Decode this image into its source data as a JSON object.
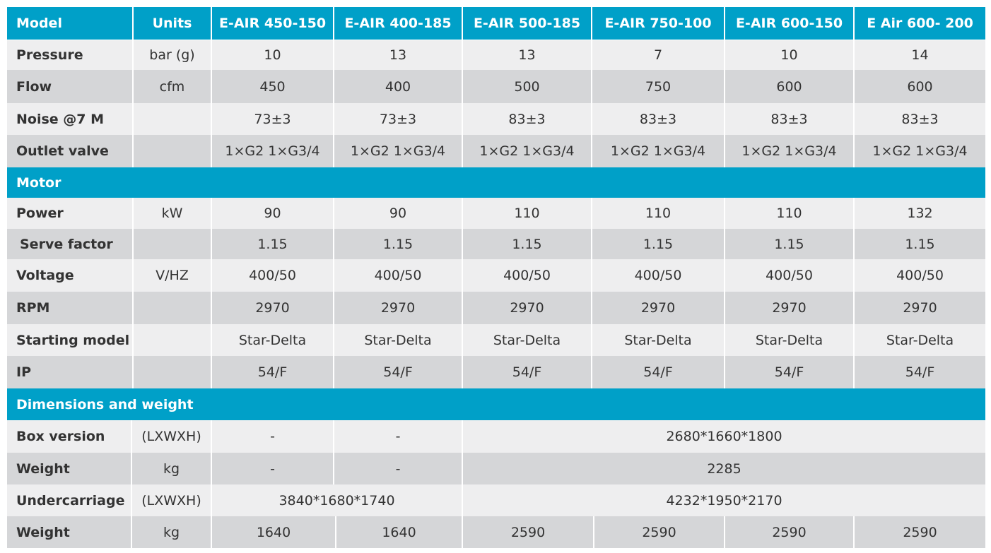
{
  "header": {
    "model": "Model",
    "units": "Units",
    "models": [
      "E-AIR 450-150",
      "E-AIR 400-185",
      "E-AIR 500-185",
      "E-AIR 750-100",
      "E-AIR 600-150",
      "E Air 600- 200"
    ]
  },
  "general": {
    "pressure": {
      "label": "Pressure",
      "unit": "bar (g)",
      "values": [
        "10",
        "13",
        "13",
        "7",
        "10",
        "14"
      ]
    },
    "flow": {
      "label": "Flow",
      "unit": "cfm",
      "values": [
        "450",
        "400",
        "500",
        "750",
        "600",
        "600"
      ]
    },
    "noise": {
      "label": "Noise @7 M",
      "unit": "",
      "values": [
        "73±3",
        "73±3",
        "83±3",
        "83±3",
        "83±3",
        "83±3"
      ]
    },
    "outlet": {
      "label": "Outlet valve",
      "unit": "",
      "values": [
        "1×G2 1×G3/4",
        "1×G2 1×G3/4",
        "1×G2 1×G3/4",
        "1×G2 1×G3/4",
        "1×G2 1×G3/4",
        "1×G2 1×G3/4"
      ]
    }
  },
  "motor": {
    "title": "Motor",
    "power": {
      "label": "Power",
      "unit": "kW",
      "values": [
        "90",
        "90",
        "110",
        "110",
        "110",
        "132"
      ]
    },
    "serve_factor": {
      "label": "Serve factor",
      "unit": "",
      "values": [
        "1.15",
        "1.15",
        "1.15",
        "1.15",
        "1.15",
        "1.15"
      ]
    },
    "voltage": {
      "label": "Voltage",
      "unit": "V/HZ",
      "values": [
        "400/50",
        "400/50",
        "400/50",
        "400/50",
        "400/50",
        "400/50"
      ]
    },
    "rpm": {
      "label": "RPM",
      "unit": "",
      "values": [
        "2970",
        "2970",
        "2970",
        "2970",
        "2970",
        "2970"
      ]
    },
    "starting": {
      "label": "Starting model",
      "unit": "",
      "values": [
        "Star-Delta",
        "Star-Delta",
        "Star-Delta",
        "Star-Delta",
        "Star-Delta",
        "Star-Delta"
      ]
    },
    "ip": {
      "label": "IP",
      "unit": "",
      "values": [
        "54/F",
        "54/F",
        "54/F",
        "54/F",
        "54/F",
        "54/F"
      ]
    }
  },
  "dimensions": {
    "title": "Dimensions and weight",
    "box_version": {
      "label": "Box version",
      "unit": "(LXWXH)",
      "v1": "-",
      "v2": "-",
      "merged": "2680*1660*1800"
    },
    "box_weight": {
      "label": "Weight",
      "unit": "kg",
      "v1": "-",
      "v2": "-",
      "merged": "2285"
    },
    "undercarriage": {
      "label": "Undercarriage",
      "unit": "(LXWXH)",
      "merged_a": "3840*1680*1740",
      "merged_b": "4232*1950*2170"
    },
    "undercarriage_weight": {
      "label": "Weight",
      "unit": "kg",
      "values": [
        "1640",
        "1640",
        "2590",
        "2590",
        "2590",
        "2590"
      ]
    }
  }
}
